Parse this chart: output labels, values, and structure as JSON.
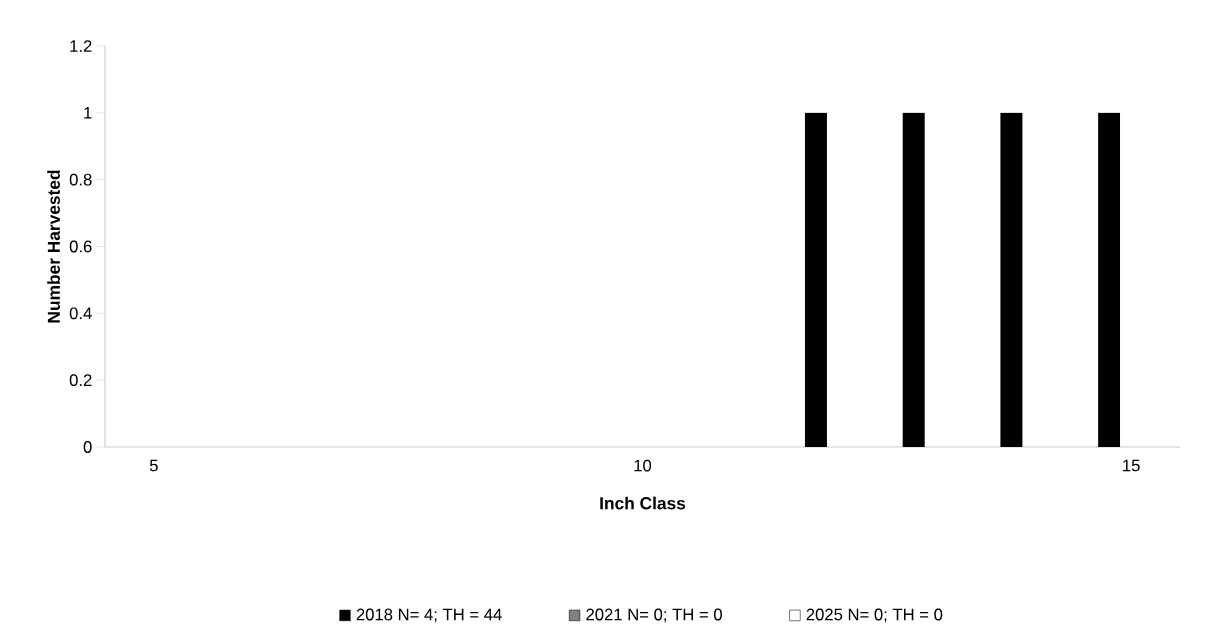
{
  "chart_data": {
    "type": "bar",
    "xlabel": "Inch Class",
    "ylabel": "Number Harvested",
    "categories": [
      "5",
      null,
      null,
      null,
      null,
      "10",
      null,
      null,
      null,
      null,
      "15"
    ],
    "series": [
      {
        "name": "2018 N= 4; TH = 44",
        "color": "#000000",
        "values": [
          0,
          0,
          0,
          0,
          0,
          0,
          0,
          1,
          1,
          1,
          1
        ]
      },
      {
        "name": "2021 N= 0; TH = 0",
        "color": "#808080",
        "values": [
          0,
          0,
          0,
          0,
          0,
          0,
          0,
          0,
          0,
          0,
          0
        ]
      },
      {
        "name": "2025 N= 0; TH = 0",
        "color": "#ffffff",
        "values": [
          0,
          0,
          0,
          0,
          0,
          0,
          0,
          0,
          0,
          0,
          0
        ]
      }
    ],
    "ylim": [
      0,
      1.2
    ],
    "yticks": [
      0,
      0.2,
      0.4,
      0.6,
      0.8,
      1,
      1.2
    ],
    "grid": false,
    "legend": "bottom"
  }
}
